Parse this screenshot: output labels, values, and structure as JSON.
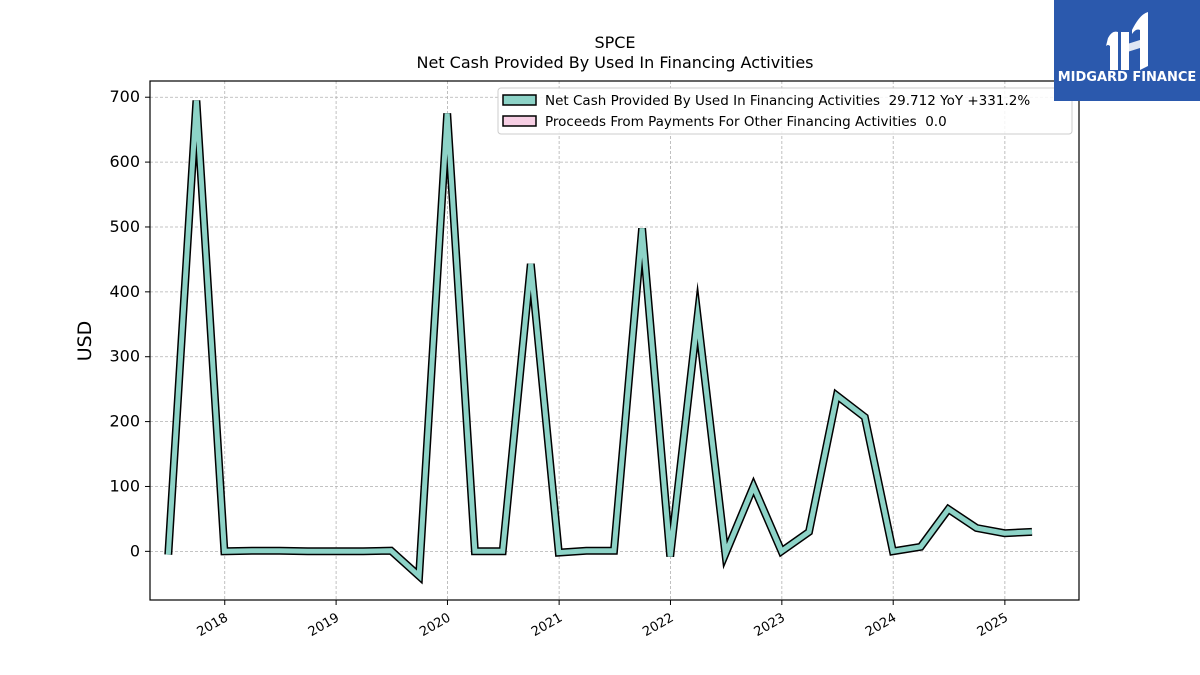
{
  "chart_data": {
    "type": "line",
    "title": "SPCE",
    "subtitle": "Net Cash Provided By Used In Financing Activities",
    "ylabel": "USD",
    "xlabel": "",
    "ylim": [
      -75,
      725
    ],
    "xlim": [
      "2017-05-01",
      "2025-09-01"
    ],
    "yticks": [
      0,
      100,
      200,
      300,
      400,
      500,
      600,
      700
    ],
    "xticks": [
      "2018",
      "2019",
      "2020",
      "2021",
      "2022",
      "2023",
      "2024",
      "2025"
    ],
    "grid": true,
    "legend_position": "top-right",
    "series": [
      {
        "name": "Net Cash Provided By Used In Financing Activities  29.712 YoY +331.2%",
        "color": "#8dd3c7",
        "x": [
          "2017-06-30",
          "2017-09-30",
          "2017-12-31",
          "2018-03-31",
          "2018-06-30",
          "2018-09-30",
          "2018-12-31",
          "2019-03-31",
          "2019-06-30",
          "2019-09-30",
          "2019-12-31",
          "2020-03-31",
          "2020-06-30",
          "2020-09-30",
          "2020-12-31",
          "2021-03-31",
          "2021-06-30",
          "2021-09-30",
          "2021-12-31",
          "2022-03-31",
          "2022-06-30",
          "2022-09-30",
          "2022-12-31",
          "2023-03-31",
          "2023-06-30",
          "2023-09-30",
          "2023-12-31",
          "2024-03-31",
          "2024-06-30",
          "2024-09-30",
          "2024-12-31",
          "2025-03-31"
        ],
        "values": [
          -5,
          695,
          0,
          1,
          1,
          0,
          0,
          0,
          1,
          -38,
          675,
          0,
          0,
          443,
          -2,
          1,
          1,
          498,
          -8,
          362,
          -4,
          100,
          0,
          30,
          240,
          207,
          0,
          7,
          65,
          36,
          28,
          30
        ]
      },
      {
        "name": "Proceeds From Payments For Other Financing Activities  0.0",
        "color": "#f7cfe4",
        "x": [],
        "values": []
      }
    ]
  },
  "logo": {
    "text": "MIDGARD FINANCE",
    "background": "#2b59ad"
  }
}
